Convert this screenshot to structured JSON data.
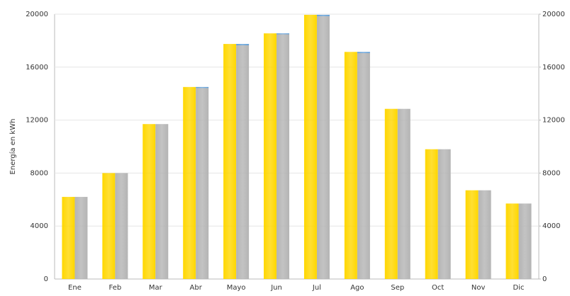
{
  "chart_data": {
    "type": "bar",
    "y_label": "Energía en kWh",
    "categories": [
      "Ene",
      "Feb",
      "Mar",
      "Abr",
      "Mayo",
      "Jun",
      "Jul",
      "Ago",
      "Sep",
      "Oct",
      "Nov",
      "Dic"
    ],
    "series": [
      {
        "color": "#ffd700",
        "values": [
          6200,
          8000,
          11700,
          14500,
          17750,
          18550,
          19950,
          17150,
          12850,
          9800,
          6700,
          5700
        ]
      },
      {
        "color": "#b4b4b4",
        "values": [
          6200,
          8000,
          11700,
          14420,
          17650,
          18480,
          19850,
          17060,
          12850,
          9800,
          6700,
          5700
        ]
      },
      {
        "color": "#5b9bd5",
        "stacked_on": 1,
        "values": [
          0,
          0,
          0,
          80,
          100,
          70,
          100,
          90,
          0,
          0,
          0,
          0
        ]
      }
    ],
    "ylim": [
      0,
      20000
    ],
    "yticks": [
      0,
      4000,
      8000,
      12000,
      16000,
      20000
    ],
    "y2lim": [
      0,
      20000
    ],
    "y2ticks": [
      0,
      4000,
      8000,
      12000,
      16000,
      20000
    ],
    "grid": true
  }
}
